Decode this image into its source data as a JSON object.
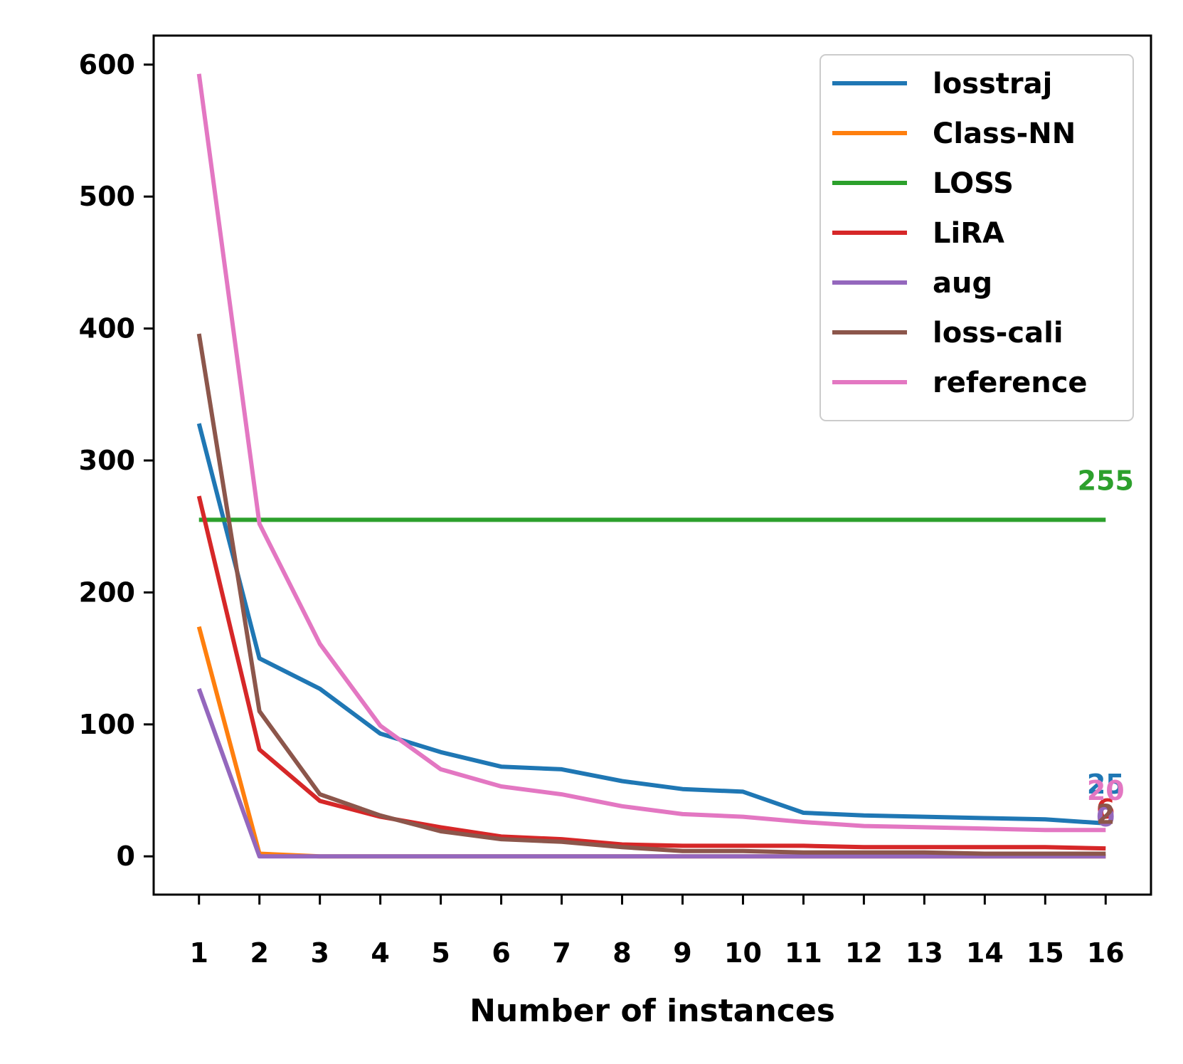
{
  "chart_data": {
    "type": "line",
    "title": "",
    "xlabel": "Number of instances",
    "ylabel": "",
    "x": [
      1,
      2,
      3,
      4,
      5,
      6,
      7,
      8,
      9,
      10,
      11,
      12,
      13,
      14,
      15,
      16
    ],
    "x_tick_labels": [
      "1",
      "2",
      "3",
      "4",
      "5",
      "6",
      "7",
      "8",
      "9",
      "10",
      "11",
      "12",
      "13",
      "14",
      "15",
      "16"
    ],
    "xlim": [
      0.25,
      16.75
    ],
    "ylim": [
      -29,
      622
    ],
    "y_ticks": [
      0,
      100,
      200,
      300,
      400,
      500,
      600
    ],
    "y_tick_labels": [
      "0",
      "100",
      "200",
      "300",
      "400",
      "500",
      "600"
    ],
    "grid": false,
    "legend_position": "top-right",
    "series": [
      {
        "name": "losstraj",
        "color": "#1f77b4",
        "values": [
          328,
          150,
          127,
          93,
          79,
          68,
          66,
          57,
          51,
          49,
          33,
          31,
          30,
          29,
          28,
          25
        ],
        "end_label": "25"
      },
      {
        "name": "Class-NN",
        "color": "#ff7f0e",
        "values": [
          174,
          2,
          0,
          0,
          0,
          0,
          0,
          0,
          0,
          0,
          0,
          0,
          0,
          0,
          0,
          0
        ],
        "end_label": ""
      },
      {
        "name": "LOSS",
        "color": "#2ca02c",
        "values": [
          255,
          255,
          255,
          255,
          255,
          255,
          255,
          255,
          255,
          255,
          255,
          255,
          255,
          255,
          255,
          255
        ],
        "end_label": "255"
      },
      {
        "name": "LiRA",
        "color": "#d62728",
        "values": [
          273,
          81,
          42,
          30,
          22,
          15,
          13,
          9,
          8,
          8,
          8,
          7,
          7,
          7,
          7,
          6
        ],
        "end_label": "6"
      },
      {
        "name": "aug",
        "color": "#9467bd",
        "values": [
          127,
          0,
          0,
          0,
          0,
          0,
          0,
          0,
          0,
          0,
          0,
          0,
          0,
          0,
          0,
          0
        ],
        "end_label": "0"
      },
      {
        "name": "loss-cali",
        "color": "#8c564b",
        "values": [
          396,
          110,
          47,
          31,
          19,
          13,
          11,
          7,
          4,
          4,
          3,
          3,
          3,
          2,
          2,
          2
        ],
        "end_label": "2"
      },
      {
        "name": "reference",
        "color": "#e377c2",
        "values": [
          593,
          252,
          161,
          99,
          66,
          53,
          47,
          38,
          32,
          30,
          26,
          23,
          22,
          21,
          20,
          20
        ],
        "end_label": "20"
      }
    ]
  }
}
